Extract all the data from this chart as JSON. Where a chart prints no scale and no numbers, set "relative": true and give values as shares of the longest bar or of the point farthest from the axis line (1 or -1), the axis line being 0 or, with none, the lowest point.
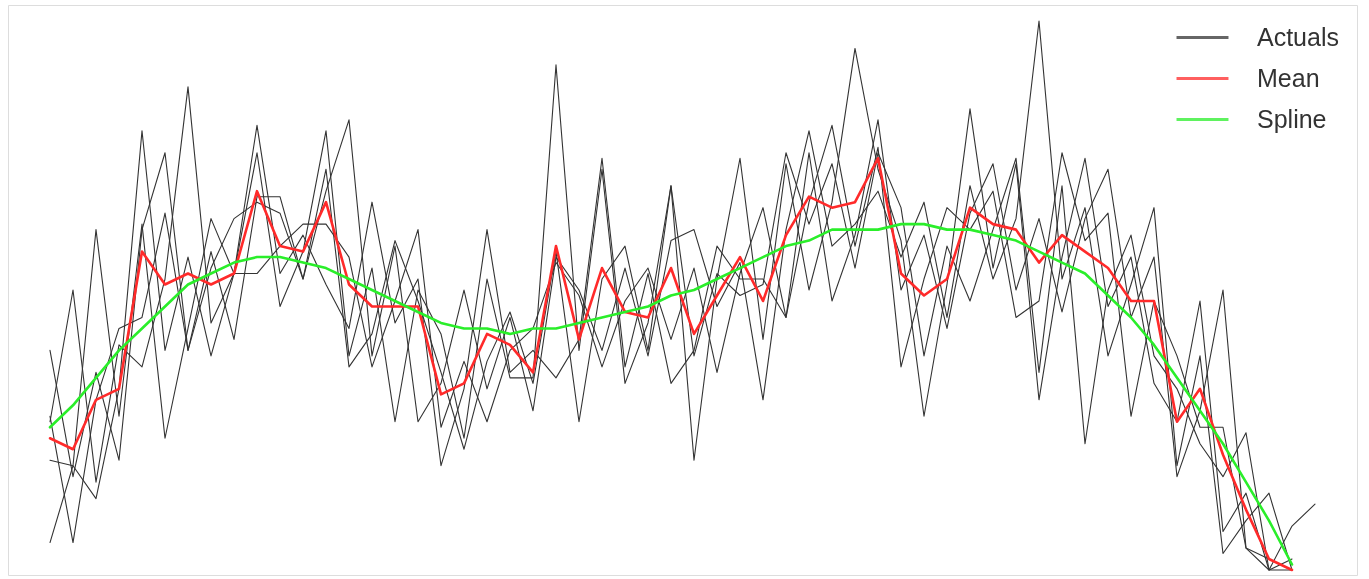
{
  "chart_data": {
    "type": "line",
    "relative": true,
    "legend": "top right",
    "categories": [
      null,
      null,
      null,
      null,
      null,
      null,
      null,
      null,
      null,
      null,
      null,
      null,
      null,
      null,
      null,
      null,
      null,
      null,
      null,
      null,
      null,
      null,
      null,
      null,
      null,
      null,
      null,
      null,
      null,
      null,
      null,
      null,
      null,
      null,
      null,
      null,
      null,
      null,
      null,
      null,
      null,
      null,
      null,
      null,
      null,
      null,
      null,
      null,
      null,
      null,
      null,
      null,
      null,
      null,
      null,
      null
    ],
    "series": [
      {
        "name": "Actuals",
        "color": "#333333",
        "values": [
          0.4,
          0.17,
          0.36,
          0.2,
          0.62,
          0.76,
          0.4,
          0.58,
          0.42,
          0.68,
          0.68,
          0.53,
          0.73,
          0.37,
          0.43,
          0.6,
          0.49,
          0.36,
          0.22,
          0.38,
          0.47,
          0.34,
          0.58,
          0.27,
          0.53,
          0.59,
          0.4,
          0.7,
          0.2,
          0.53,
          0.75,
          0.42,
          0.74,
          0.51,
          0.67,
          0.95,
          0.73,
          0.6,
          0.28,
          0.52,
          0.84,
          0.55,
          0.74,
          0.31,
          0.57,
          0.75,
          0.48,
          0.57,
          0.34,
          0.27,
          0.49,
          0.07,
          0.14,
          0,
          0,
          null
        ]
      },
      {
        "color": "#333333",
        "values": [
          0.27,
          0.51,
          0.16,
          0.41,
          0.37,
          0.53,
          0.88,
          0.45,
          0.54,
          0.54,
          0.59,
          0.63,
          0.63,
          0.57,
          0.37,
          0.49,
          0.62,
          0.26,
          0.38,
          0.27,
          0.4,
          0.44,
          0.56,
          0.5,
          0.37,
          0.49,
          0.55,
          0.42,
          0.55,
          0.36,
          0.54,
          0.66,
          0.46,
          0.76,
          0.49,
          0.61,
          0.82,
          0.51,
          0.61,
          0.44,
          0.65,
          0.74,
          0.51,
          0.64,
          0.47,
          0.64,
          0.73,
          0.46,
          0.57,
          0.17,
          0.29,
          0.51,
          0.04,
          0.02,
          0,
          null
        ]
      },
      {
        "color": "#333333",
        "values": [
          0.05,
          0.19,
          0.62,
          0.28,
          0.63,
          0.24,
          0.44,
          0.64,
          0.54,
          0.76,
          0.48,
          0.58,
          0.8,
          0.39,
          0.55,
          0.27,
          0.51,
          0.43,
          0.24,
          0.53,
          0.35,
          0.35,
          0.92,
          0.4,
          0.73,
          0.34,
          0.45,
          0.7,
          0.39,
          0.54,
          0.5,
          0.52,
          0.76,
          0.63,
          0.74,
          0.55,
          0.76,
          0.66,
          0.39,
          0.59,
          0.49,
          0.62,
          0.75,
          0.36,
          0.7,
          0.23,
          0.51,
          0.61,
          0.39,
          0.33,
          0.23,
          0.17,
          0.25,
          0,
          0.02,
          null
        ]
      },
      {
        "color": "#333333",
        "values": [
          0.28,
          0.05,
          0.31,
          0.44,
          0.46,
          0.65,
          0.4,
          0.55,
          0.64,
          0.67,
          0.65,
          0.53,
          0.69,
          0.82,
          0.39,
          0.59,
          0.27,
          0.34,
          0.51,
          0.33,
          0.46,
          0.29,
          0.57,
          0.51,
          0.4,
          0.55,
          0.39,
          0.6,
          0.62,
          0.48,
          0.56,
          0.31,
          0.62,
          0.8,
          0.59,
          0.63,
          0.69,
          0.57,
          0.67,
          0.46,
          0.7,
          0.53,
          0.64,
          1.0,
          0.53,
          0.66,
          0.39,
          0.52,
          0.66,
          0.19,
          0.39,
          0.03,
          0.09,
          0.14,
          0,
          null
        ]
      },
      {
        "color": "#333333",
        "values": [
          0.2,
          0.19,
          0.13,
          0.33,
          0.8,
          0.4,
          0.57,
          0.39,
          0.54,
          0.81,
          0.54,
          0.61,
          0.52,
          0.44,
          0.67,
          0.45,
          0.53,
          0.19,
          0.33,
          0.62,
          0.36,
          0.4,
          0.35,
          0.42,
          0.75,
          0.37,
          0.54,
          0.34,
          0.4,
          0.59,
          0.53,
          0.53,
          0.46,
          0.67,
          0.81,
          0.59,
          0.77,
          0.37,
          0.53,
          0.66,
          0.62,
          0.69,
          0.46,
          0.49,
          0.76,
          0.6,
          0.65,
          0.28,
          0.49,
          0.39,
          0.26,
          0.26,
          0.04,
          0,
          0.08,
          0.12
        ]
      },
      {
        "name": "Mean",
        "color": "#ff2a2a",
        "values": [
          0.24,
          0.22,
          0.31,
          0.33,
          0.58,
          0.52,
          0.54,
          0.52,
          0.54,
          0.69,
          0.59,
          0.58,
          0.67,
          0.52,
          0.48,
          0.48,
          0.48,
          0.32,
          0.34,
          0.43,
          0.41,
          0.36,
          0.59,
          0.42,
          0.55,
          0.47,
          0.46,
          0.55,
          0.43,
          0.5,
          0.57,
          0.49,
          0.61,
          0.68,
          0.66,
          0.67,
          0.75,
          0.54,
          0.5,
          0.53,
          0.66,
          0.63,
          0.62,
          0.56,
          0.61,
          0.58,
          0.55,
          0.49,
          0.49,
          0.27,
          0.33,
          0.21,
          0.11,
          0.02,
          0,
          null
        ]
      },
      {
        "name": "Spline",
        "color": "#2aee2a",
        "values": [
          0.26,
          0.3,
          0.35,
          0.4,
          0.44,
          0.48,
          0.52,
          0.54,
          0.56,
          0.57,
          0.57,
          0.56,
          0.55,
          0.53,
          0.51,
          0.49,
          0.47,
          0.45,
          0.44,
          0.44,
          0.43,
          0.44,
          0.44,
          0.45,
          0.46,
          0.47,
          0.48,
          0.5,
          0.51,
          0.53,
          0.55,
          0.57,
          0.59,
          0.6,
          0.62,
          0.62,
          0.62,
          0.63,
          0.63,
          0.62,
          0.62,
          0.61,
          0.6,
          0.58,
          0.56,
          0.54,
          0.5,
          0.46,
          0.41,
          0.35,
          0.29,
          0.23,
          0.16,
          0.09,
          0.01,
          null
        ]
      }
    ]
  }
}
